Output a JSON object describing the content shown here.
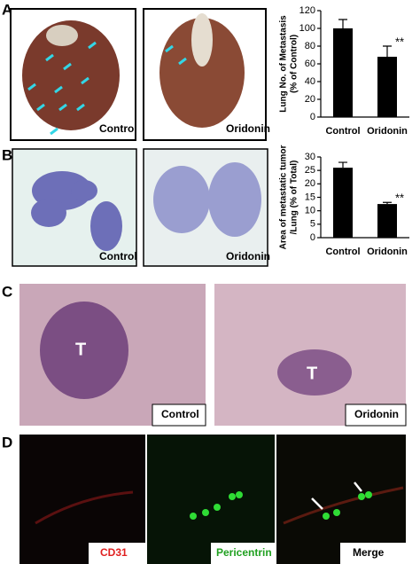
{
  "panels": {
    "A": {
      "letter": "A",
      "captions": [
        "Control",
        "Oridonin"
      ]
    },
    "B": {
      "letter": "B",
      "captions": [
        "Control",
        "Oridonin"
      ]
    },
    "C": {
      "letter": "C",
      "captions": [
        "Control",
        "Oridonin"
      ],
      "tumor_labels": [
        "T",
        "T"
      ]
    },
    "D": {
      "letter": "D",
      "captions": [
        "CD31",
        "Pericentrin",
        "Merge"
      ]
    }
  },
  "chart_data": [
    {
      "type": "bar",
      "y_label": [
        "Lung No. of Metastasis",
        "(% of Control)"
      ],
      "categories": [
        "Control",
        "Oridonin"
      ],
      "values": [
        100,
        68
      ],
      "errors": [
        10,
        12
      ],
      "color": "#000000",
      "ylim": [
        0,
        120
      ],
      "yticks": [
        0,
        20,
        40,
        60,
        80,
        100,
        120
      ],
      "annotation": "**"
    },
    {
      "type": "bar",
      "y_label": [
        "Area of metastatic tumor",
        "/Lung (% of Total)"
      ],
      "categories": [
        "Control",
        "Oridonin"
      ],
      "values": [
        26,
        12.5
      ],
      "errors": [
        2,
        0.6
      ],
      "color": "#000000",
      "ylim": [
        0,
        30
      ],
      "yticks": [
        0,
        5,
        10,
        15,
        20,
        25,
        30
      ],
      "annotation": "**"
    }
  ]
}
